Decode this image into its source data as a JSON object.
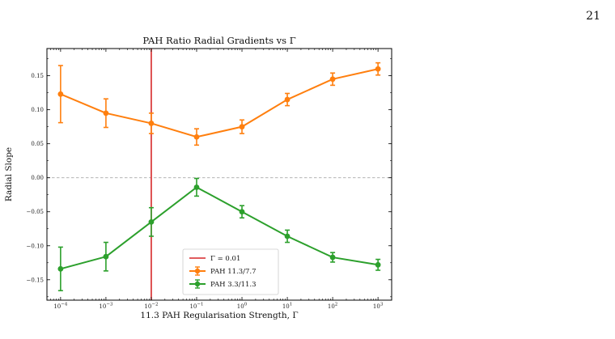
{
  "page": {
    "number": "21"
  },
  "colors": {
    "orange": "#ff7f0e",
    "green": "#2ca02c",
    "red": "#d62728",
    "zero_line": "#aaaaaa"
  },
  "chart_data": {
    "type": "line",
    "title": "PAH Ratio Radial Gradients vs Γ",
    "xlabel": "11.3 PAH Regularisation Strength, Γ",
    "ylabel": "Radial Slope",
    "xscale": "log",
    "xlim": [
      5e-05,
      2000.0
    ],
    "ylim": [
      -0.18,
      0.19
    ],
    "xticks": [
      {
        "value": 0.0001,
        "base": "10",
        "exp": "−4"
      },
      {
        "value": 0.001,
        "base": "10",
        "exp": "−3"
      },
      {
        "value": 0.01,
        "base": "10",
        "exp": "−2"
      },
      {
        "value": 0.1,
        "base": "10",
        "exp": "−1"
      },
      {
        "value": 1.0,
        "base": "10",
        "exp": "0"
      },
      {
        "value": 10.0,
        "base": "10",
        "exp": "1"
      },
      {
        "value": 100.0,
        "base": "10",
        "exp": "2"
      },
      {
        "value": 1000.0,
        "base": "10",
        "exp": "3"
      }
    ],
    "yticks": [
      {
        "value": 0.15,
        "label": "0.15"
      },
      {
        "value": 0.1,
        "label": "0.10"
      },
      {
        "value": 0.05,
        "label": "0.05"
      },
      {
        "value": 0.0,
        "label": "0.00"
      },
      {
        "value": -0.05,
        "label": "−0.05"
      },
      {
        "value": -0.1,
        "label": "−0.10"
      },
      {
        "value": -0.15,
        "label": "−0.15"
      }
    ],
    "x": [
      0.0001,
      0.001,
      0.01,
      0.1,
      1,
      10,
      100,
      1000
    ],
    "series": [
      {
        "name": "PAH 11.3/7.7",
        "color": "#ff7f0e",
        "values": [
          0.123,
          0.095,
          0.08,
          0.06,
          0.075,
          0.115,
          0.145,
          0.16
        ],
        "errors": [
          0.042,
          0.021,
          0.015,
          0.012,
          0.01,
          0.009,
          0.009,
          0.009
        ]
      },
      {
        "name": "PAH 3.3/11.3",
        "color": "#2ca02c",
        "values": [
          -0.134,
          -0.116,
          -0.065,
          -0.014,
          -0.05,
          -0.086,
          -0.117,
          -0.128
        ],
        "errors": [
          0.032,
          0.021,
          0.021,
          0.013,
          0.009,
          0.009,
          0.007,
          0.008
        ]
      }
    ],
    "reference_line": {
      "x": 0.01,
      "label": "Γ = 0.01",
      "color": "#d62728"
    },
    "zero_line": {
      "y": 0.0
    },
    "legend": {
      "placement": "lower-center"
    },
    "grid": false
  }
}
